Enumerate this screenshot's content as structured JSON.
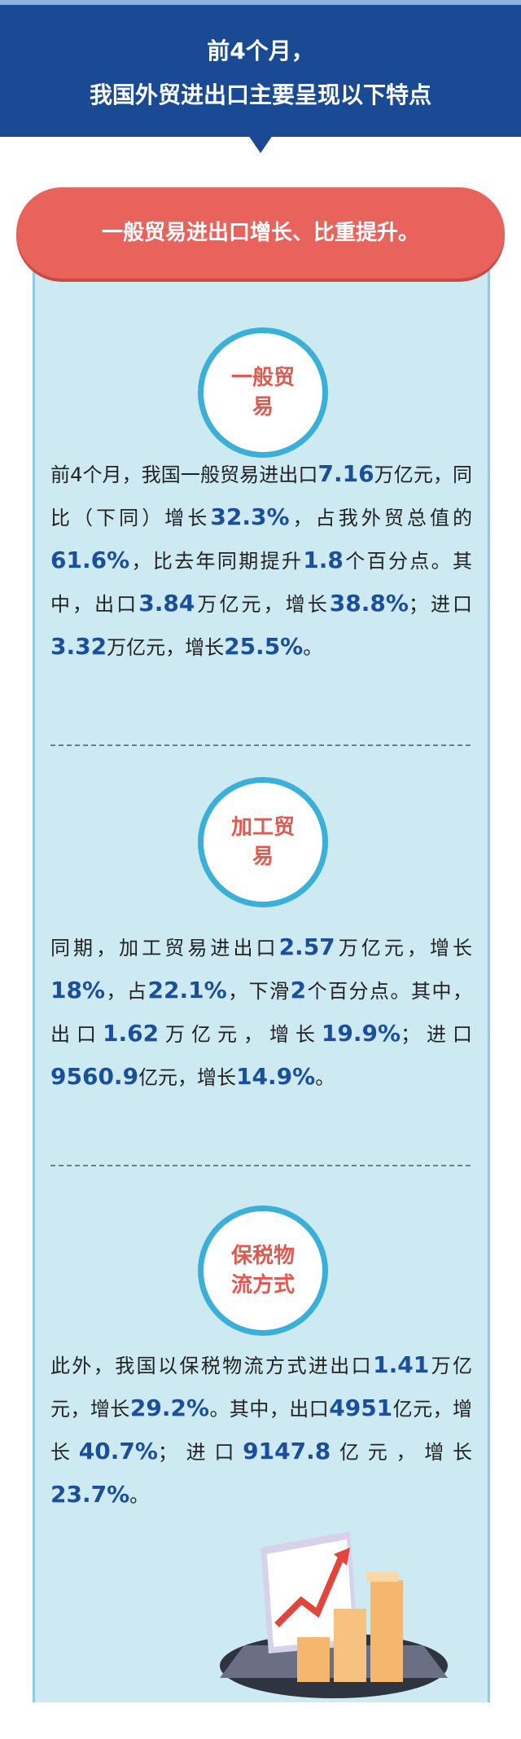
{
  "header": {
    "title_lines": [
      "前4个月，",
      "我国外贸进出口主要呈现以下特点"
    ]
  },
  "banner": "一般贸易进出口增长、比重提升。",
  "sections": [
    {
      "label": "一般贸易",
      "segments": [
        "前4个月，我国一般贸易进出口",
        "7.16",
        "万亿元，同比（下同）增长",
        "32.3%",
        "，占我外贸总值的",
        "61.6%",
        "，比去年同期提升",
        "1.8",
        "个百分点。其中，出口",
        "3.84",
        "万亿元，增长",
        "38.8%",
        "；进口",
        "3.32",
        "万亿元，增长",
        "25.5%",
        "。"
      ]
    },
    {
      "label": "加工贸易",
      "segments": [
        "同期，加工贸易进出口",
        "2.57",
        "万亿元，增长",
        "18%",
        "，占",
        "22.1%",
        "，下滑",
        "2",
        "个百分点。其中，出口",
        "1.62",
        "万亿元，增长",
        "19.9%",
        "；进口",
        "9560.9",
        "亿元，增长",
        "14.9%",
        "。"
      ]
    },
    {
      "label": "保税物流方式",
      "segments": [
        "此外，我国以保税物流方式进出口",
        "1.41",
        "万亿元，增长",
        "29.2%",
        "。其中，出口",
        "4951",
        "亿元，增长",
        "40.7%",
        "；进口",
        "9147.8",
        "亿元，增长",
        "23.7%",
        "。"
      ]
    }
  ]
}
